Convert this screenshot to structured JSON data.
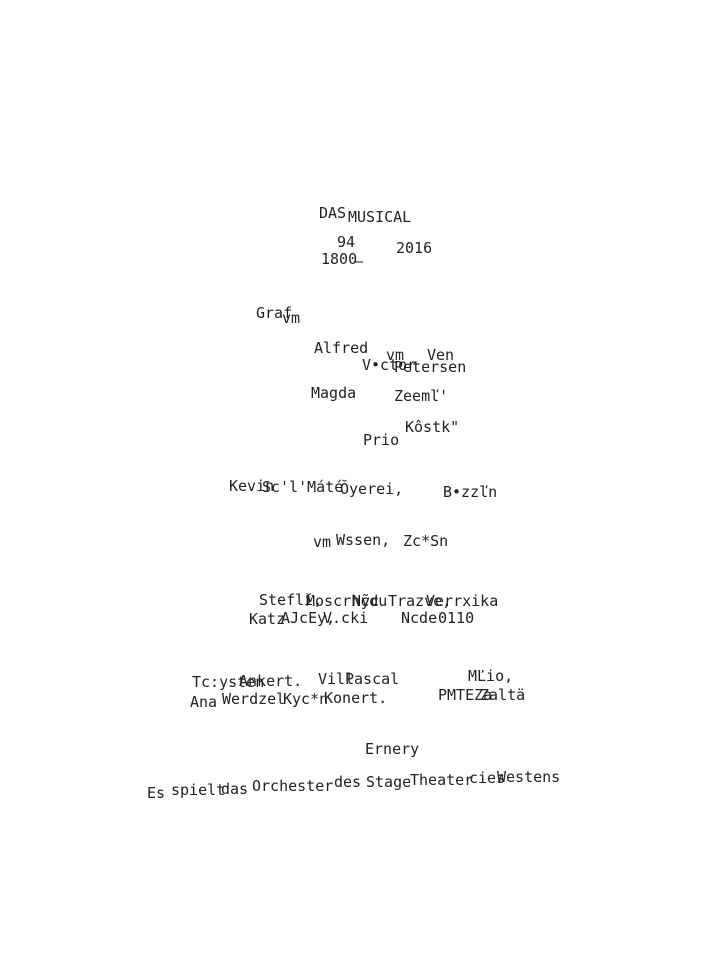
{
  "text_color": "#222222",
  "background_color": "#ffffff",
  "title": [
    "DAS",
    "MUSICAL"
  ],
  "subtitle": [
    "94",
    "2016",
    "1800",
    "—"
  ],
  "credits": [
    [
      "Graf",
      "vm"
    ],
    [
      "Alfred",
      "vm",
      "Ven",
      "V•ctor",
      "Petersen"
    ],
    [
      "Magda",
      "Zeemľ'"
    ],
    [
      "Kôstk\"",
      "Prio"
    ],
    [
      "Kevin",
      "Sc'l'Máté",
      "Ŏyerei,",
      "B•zzľn"
    ],
    [
      "vm",
      "Wssen,",
      "Zc*Sn"
    ],
    [
      "Steflĭ,",
      "Moscrhcdu",
      "Nỹc",
      "Trazve,",
      "Verrxika",
      "Katz",
      "AJcEy,",
      "V.cki",
      "Ncde",
      "0110"
    ],
    [
      "Tc:ysten",
      "Ankert.",
      "Vill",
      "Pascal",
      "MĽio,",
      "Ana",
      "Werdzel",
      "Kyc*n",
      "Konert.",
      "PMTEZa",
      "Zaltä"
    ]
  ],
  "footer": [
    "Ernery",
    "Es",
    "spielt",
    "das",
    "Orchester",
    "des",
    "Stage",
    "Theater",
    "cies",
    "Westens"
  ]
}
